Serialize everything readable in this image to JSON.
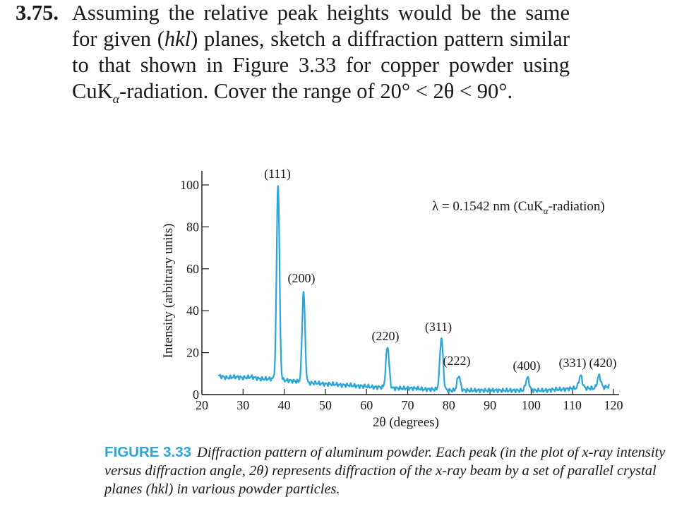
{
  "problem": {
    "number": "3.75.",
    "text_part1": "Assuming the relative peak heights would be the same for given (",
    "text_hkl": "hkl",
    "text_part2": ") planes, sketch a diffraction pattern similar to that shown in Figure 3.33 for copper powder using CuK",
    "text_sub": "α",
    "text_part3": "-radiation. Cover the range of ",
    "text_range": "20° < 2θ < 90°."
  },
  "chart_data": {
    "type": "line",
    "xlabel": "2θ (degrees)",
    "ylabel": "Intensity (arbitrary units)",
    "xlim": [
      20,
      120
    ],
    "ylim": [
      0,
      100
    ],
    "x_ticks": [
      20,
      30,
      40,
      50,
      60,
      70,
      80,
      90,
      100,
      110,
      120
    ],
    "y_ticks": [
      0,
      20,
      40,
      60,
      80,
      100
    ],
    "annotation_prefix": "λ = 0.1542 nm (CuK",
    "annotation_sub": "α",
    "annotation_suffix": "-radiation)",
    "line_color": "#2aa5d8",
    "baseline": [
      [
        24,
        9
      ],
      [
        26,
        8
      ],
      [
        28,
        8.5
      ],
      [
        30,
        8
      ],
      [
        32,
        8.5
      ],
      [
        34,
        7.5
      ],
      [
        36,
        7.5
      ],
      [
        37.5,
        7.5
      ],
      [
        39.5,
        7
      ],
      [
        42,
        6.5
      ],
      [
        44.5,
        6
      ],
      [
        46,
        5.5
      ],
      [
        48,
        5.5
      ],
      [
        50,
        5
      ],
      [
        52,
        5
      ],
      [
        54,
        4.5
      ],
      [
        56,
        4.5
      ],
      [
        58,
        4
      ],
      [
        60,
        4
      ],
      [
        62,
        3.5
      ],
      [
        64,
        3.5
      ],
      [
        66,
        3
      ],
      [
        68,
        3
      ],
      [
        70,
        3
      ],
      [
        72,
        3
      ],
      [
        74,
        2.5
      ],
      [
        76,
        2.5
      ],
      [
        78,
        2.5
      ],
      [
        80,
        2
      ],
      [
        82,
        2
      ],
      [
        84,
        2
      ],
      [
        86,
        2
      ],
      [
        88,
        2
      ],
      [
        90,
        2
      ],
      [
        92,
        2
      ],
      [
        94,
        2
      ],
      [
        96,
        2
      ],
      [
        98,
        2
      ],
      [
        100,
        2
      ],
      [
        102,
        2
      ],
      [
        104,
        2
      ],
      [
        106,
        2.5
      ],
      [
        108,
        2.5
      ],
      [
        110,
        3
      ],
      [
        112,
        3
      ],
      [
        114,
        3
      ],
      [
        116,
        3
      ],
      [
        118,
        3.5
      ],
      [
        119,
        4
      ]
    ],
    "peaks": [
      {
        "label": "(111)",
        "x": 38.5,
        "y": 100,
        "width": 0.5
      },
      {
        "label": "(200)",
        "x": 44.7,
        "y": 49,
        "width": 0.5
      },
      {
        "label": "(220)",
        "x": 65.1,
        "y": 23,
        "width": 0.55
      },
      {
        "label": "(311)",
        "x": 78.2,
        "y": 27,
        "width": 0.55
      },
      {
        "label": "(222)",
        "x": 82.4,
        "y": 9,
        "width": 0.55
      },
      {
        "label": "(400)",
        "x": 99.1,
        "y": 8,
        "width": 0.6
      },
      {
        "label": "(331)",
        "x": 112.0,
        "y": 9,
        "width": 0.6
      },
      {
        "label": "(420)",
        "x": 116.5,
        "y": 9,
        "width": 0.6
      }
    ]
  },
  "caption": {
    "label": "FIGURE 3.33",
    "text": "Diffraction pattern of aluminum powder. Each peak (in the plot of x-ray intensity versus diffraction angle, 2θ) represents diffraction of the x-ray beam by a set of parallel crystal planes (hkl) in various powder particles."
  }
}
